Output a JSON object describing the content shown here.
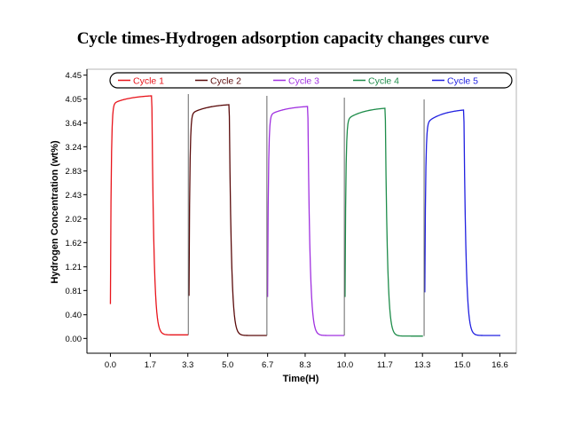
{
  "chart_data": {
    "type": "line",
    "title": "Cycle times-Hydrogen adsorption capacity changes curve",
    "xlabel": "Time(H)",
    "ylabel": "Hydrogen Concentration (wt%)",
    "xlim": [
      -1.0,
      17.3
    ],
    "ylim": [
      -0.25,
      4.55
    ],
    "x_ticks": [
      "0.0",
      "1.7",
      "3.3",
      "5.0",
      "6.7",
      "8.3",
      "10.0",
      "11.7",
      "13.3",
      "15.0",
      "16.6"
    ],
    "x_tick_values": [
      0.0,
      1.7,
      3.3,
      5.0,
      6.7,
      8.3,
      10.0,
      11.7,
      13.3,
      15.0,
      16.6
    ],
    "y_ticks": [
      "0.00",
      "0.40",
      "0.81",
      "1.21",
      "1.62",
      "2.02",
      "2.43",
      "2.83",
      "3.24",
      "3.64",
      "4.05",
      "4.45"
    ],
    "y_tick_values": [
      0.0,
      0.4,
      0.81,
      1.21,
      1.62,
      2.02,
      2.43,
      2.83,
      3.24,
      3.64,
      4.05,
      4.45
    ],
    "grid": false,
    "legend_position": "top",
    "series": [
      {
        "name": "Cycle 1",
        "color": "#e8141b",
        "start": 0.0,
        "absorb_end": 1.75,
        "desorb_end": 3.3,
        "start_value": 0.58,
        "plateau_start": 3.95,
        "peak": 4.1,
        "final": 0.06
      },
      {
        "name": "Cycle 2",
        "color": "#5a0a0a",
        "start": 3.35,
        "absorb_end": 5.05,
        "desorb_end": 6.65,
        "start_value": 0.72,
        "plateau_start": 3.78,
        "peak": 3.95,
        "final": 0.05
      },
      {
        "name": "Cycle 3",
        "color": "#a030e0",
        "start": 6.7,
        "absorb_end": 8.4,
        "desorb_end": 9.95,
        "start_value": 0.7,
        "plateau_start": 3.76,
        "peak": 3.92,
        "final": 0.05
      },
      {
        "name": "Cycle 4",
        "color": "#1e8c4a",
        "start": 10.0,
        "absorb_end": 11.7,
        "desorb_end": 13.3,
        "start_value": 0.7,
        "plateau_start": 3.68,
        "peak": 3.89,
        "final": 0.04
      },
      {
        "name": "Cycle 5",
        "color": "#2020e0",
        "start": 13.4,
        "absorb_end": 15.05,
        "desorb_end": 16.6,
        "start_value": 0.78,
        "plateau_start": 3.62,
        "peak": 3.86,
        "final": 0.05
      }
    ]
  }
}
